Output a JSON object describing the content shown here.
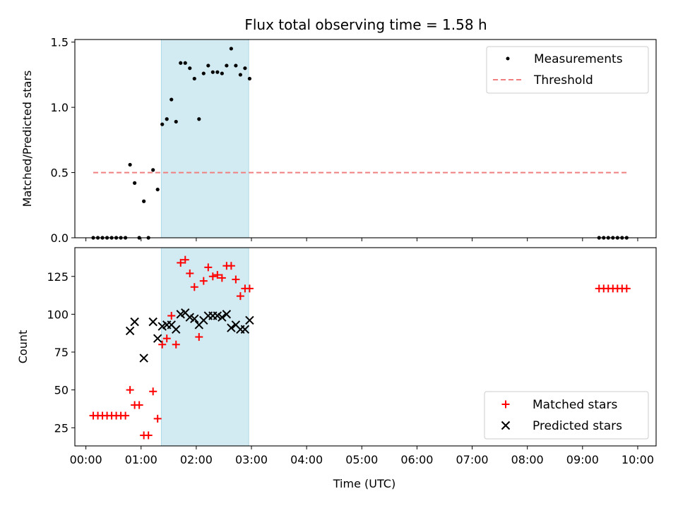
{
  "title": "Flux total observing time = 1.58 h",
  "xlabel": "Time (UTC)",
  "x_tick_labels": [
    "00:00",
    "01:00",
    "02:00",
    "03:00",
    "04:00",
    "05:00",
    "06:00",
    "07:00",
    "08:00",
    "09:00",
    "10:00"
  ],
  "colors": {
    "highlight": "#add8e6",
    "threshold": "#f08080",
    "matched": "#ff0000",
    "predicted": "#000000",
    "measurement": "#000000"
  },
  "chart_data": [
    {
      "type": "scatter",
      "ylabel": "Matched/Predicted stars",
      "xlim": [
        "-00:12",
        "10:20"
      ],
      "ylim": [
        0,
        1.52
      ],
      "y_ticks": [
        0,
        0.5,
        1.0,
        1.5
      ],
      "y_tick_labels": [
        "0.0",
        "0.5",
        "1.0",
        "1.5"
      ],
      "highlight_span": [
        "01:22",
        "02:57"
      ],
      "threshold": {
        "value": 0.5,
        "x_range": [
          "00:08",
          "09:50"
        ]
      },
      "legend": {
        "position": "top-right",
        "entries": [
          "Measurements",
          "Threshold"
        ]
      },
      "series": [
        {
          "name": "Measurements",
          "x": [
            "00:08",
            "00:13",
            "00:18",
            "00:23",
            "00:28",
            "00:33",
            "00:38",
            "00:43",
            "00:48",
            "00:53",
            "00:58",
            "01:03",
            "01:08",
            "01:13",
            "01:18",
            "01:23",
            "01:28",
            "01:33",
            "01:38",
            "01:43",
            "01:48",
            "01:53",
            "01:58",
            "02:03",
            "02:08",
            "02:13",
            "02:18",
            "02:23",
            "02:28",
            "02:33",
            "02:38",
            "02:43",
            "02:48",
            "02:53",
            "02:58",
            "09:18",
            "09:23",
            "09:28",
            "09:33",
            "09:38",
            "09:43",
            "09:48"
          ],
          "y": [
            0,
            0,
            0,
            0,
            0,
            0,
            0,
            0,
            0.56,
            0.42,
            0,
            0.28,
            0,
            0.52,
            0.37,
            0.87,
            0.91,
            1.06,
            0.89,
            1.34,
            1.34,
            1.3,
            1.22,
            0.91,
            1.26,
            1.32,
            1.27,
            1.27,
            1.26,
            1.32,
            1.45,
            1.32,
            1.25,
            1.3,
            1.22,
            0,
            0,
            0,
            0,
            0,
            0,
            0
          ]
        }
      ]
    },
    {
      "type": "scatter",
      "ylabel": "Count",
      "xlim": [
        "-00:12",
        "10:20"
      ],
      "ylim": [
        13,
        144
      ],
      "y_ticks": [
        25,
        50,
        75,
        100,
        125
      ],
      "y_tick_labels": [
        "25",
        "50",
        "75",
        "100",
        "125"
      ],
      "highlight_span": [
        "01:22",
        "02:57"
      ],
      "legend": {
        "position": "lower-right",
        "entries": [
          "Matched stars",
          "Predicted stars"
        ]
      },
      "series": [
        {
          "name": "Matched stars",
          "marker": "plus",
          "x": [
            "00:08",
            "00:13",
            "00:18",
            "00:23",
            "00:28",
            "00:33",
            "00:38",
            "00:43",
            "00:48",
            "00:53",
            "00:58",
            "01:03",
            "01:08",
            "01:13",
            "01:18",
            "01:23",
            "01:28",
            "01:33",
            "01:38",
            "01:43",
            "01:48",
            "01:53",
            "01:58",
            "02:03",
            "02:08",
            "02:13",
            "02:18",
            "02:23",
            "02:28",
            "02:33",
            "02:38",
            "02:43",
            "02:48",
            "02:53",
            "02:58",
            "09:18",
            "09:23",
            "09:28",
            "09:33",
            "09:38",
            "09:43",
            "09:48"
          ],
          "y": [
            33,
            33,
            33,
            33,
            33,
            33,
            33,
            33,
            50,
            40,
            40,
            20,
            20,
            49,
            31,
            80,
            84,
            99,
            80,
            134,
            136,
            127,
            118,
            85,
            122,
            131,
            125,
            126,
            124,
            132,
            132,
            123,
            112,
            117,
            117,
            117,
            117,
            117,
            117,
            117,
            117,
            117
          ]
        },
        {
          "name": "Predicted stars",
          "marker": "x",
          "x": [
            "00:48",
            "00:53",
            "01:03",
            "01:13",
            "01:18",
            "01:23",
            "01:28",
            "01:33",
            "01:38",
            "01:43",
            "01:48",
            "01:53",
            "01:58",
            "02:03",
            "02:08",
            "02:13",
            "02:18",
            "02:23",
            "02:28",
            "02:33",
            "02:38",
            "02:43",
            "02:48",
            "02:53",
            "02:58"
          ],
          "y": [
            89,
            95,
            71,
            95,
            84,
            92,
            93,
            93,
            90,
            100,
            101,
            98,
            97,
            93,
            96,
            99,
            99,
            99,
            98,
            100,
            91,
            93,
            90,
            90,
            96
          ]
        }
      ]
    }
  ]
}
